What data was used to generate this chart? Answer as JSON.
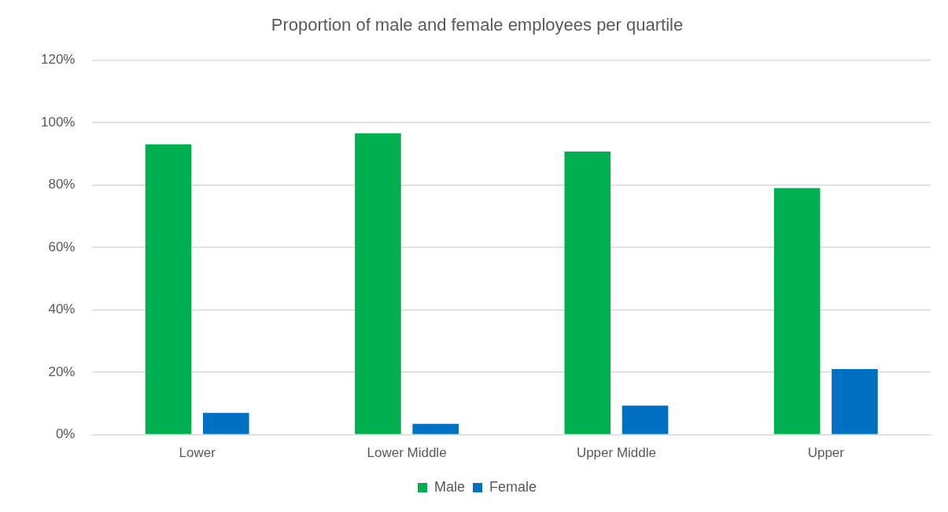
{
  "chart_data": {
    "type": "bar",
    "title": "Proportion of male and female employees per quartile",
    "categories": [
      "Lower",
      "Lower Middle",
      "Upper Middle",
      "Upper"
    ],
    "series": [
      {
        "name": "Male",
        "color": "#00b050",
        "values": [
          93,
          96.5,
          90.7,
          79
        ]
      },
      {
        "name": "Female",
        "color": "#0070c0",
        "values": [
          7,
          3.5,
          9.3,
          21
        ]
      }
    ],
    "ylim": [
      0,
      120
    ],
    "yticks": [
      {
        "value": 0,
        "label": "0%"
      },
      {
        "value": 20,
        "label": "20%"
      },
      {
        "value": 40,
        "label": "40%"
      },
      {
        "value": 60,
        "label": "60%"
      },
      {
        "value": 80,
        "label": "80%"
      },
      {
        "value": 100,
        "label": "100%"
      },
      {
        "value": 120,
        "label": "120%"
      }
    ],
    "grid": "y",
    "legend": "bottom"
  }
}
